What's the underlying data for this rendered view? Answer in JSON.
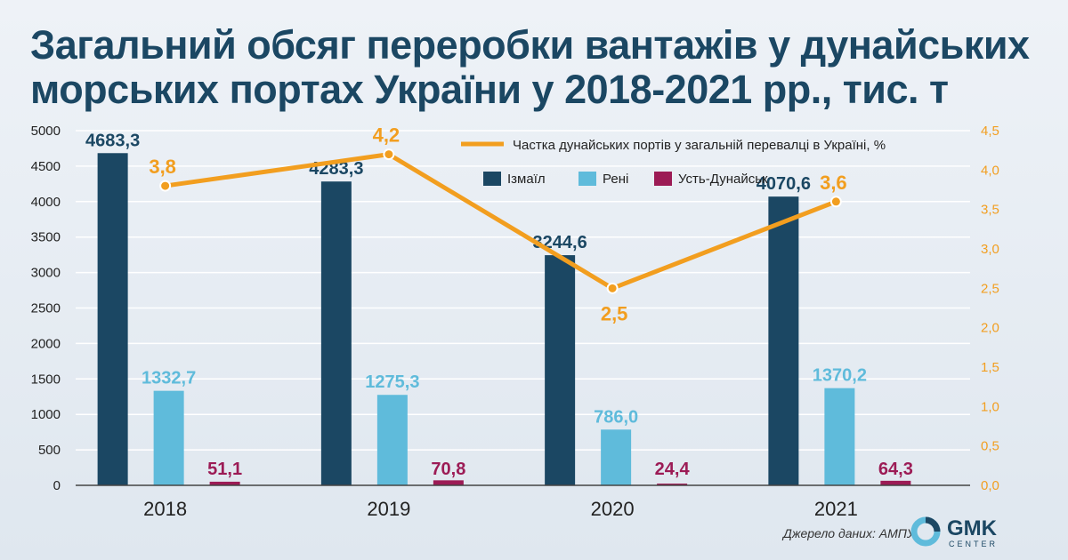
{
  "title": "Загальний обсяг переробки вантажів у дунайських морських портах України у 2018-2021 рр., тис. т",
  "source": "Джерело даних: АМПУ",
  "logo": {
    "name": "GMK",
    "sub": "CENTER"
  },
  "colors": {
    "izmail": "#1b4763",
    "reni": "#5fbbdb",
    "ust": "#9c1b55",
    "line": "#f29e1f",
    "title": "#1b4763",
    "grid": "#ffffff"
  },
  "chart_data": {
    "type": "bar",
    "categories": [
      "2018",
      "2019",
      "2020",
      "2021"
    ],
    "series": [
      {
        "name": "Ізмаїл",
        "values": [
          4683.3,
          4283.3,
          3244.6,
          4070.6
        ],
        "labels": [
          "4683,3",
          "4283,3",
          "3244,6",
          "4070,6"
        ]
      },
      {
        "name": "Рені",
        "values": [
          1332.7,
          1275.3,
          786.0,
          1370.2
        ],
        "labels": [
          "1332,7",
          "1275,3",
          "786,0",
          "1370,2"
        ]
      },
      {
        "name": "Усть-Дунайськ",
        "values": [
          51.1,
          70.8,
          24.4,
          64.3
        ],
        "labels": [
          "51,1",
          "70,8",
          "24,4",
          "64,3"
        ]
      }
    ],
    "line_series": {
      "name": "Частка дунайських портів у загальній перевалці в Україні, %",
      "values": [
        3.8,
        4.2,
        2.5,
        3.6
      ],
      "labels": [
        "3,8",
        "4,2",
        "2,5",
        "3,6"
      ]
    },
    "ylim": [
      0,
      5000
    ],
    "yticks": [
      "0",
      "500",
      "1000",
      "1500",
      "2000",
      "2500",
      "3000",
      "3500",
      "4000",
      "4500",
      "5000"
    ],
    "y2lim": [
      0,
      4.5
    ],
    "y2ticks": [
      "0,0",
      "0,5",
      "1,0",
      "1,5",
      "2,0",
      "2,5",
      "3,0",
      "3,5",
      "4,0",
      "4,5"
    ],
    "grid": true,
    "legend_position": "top-right"
  }
}
